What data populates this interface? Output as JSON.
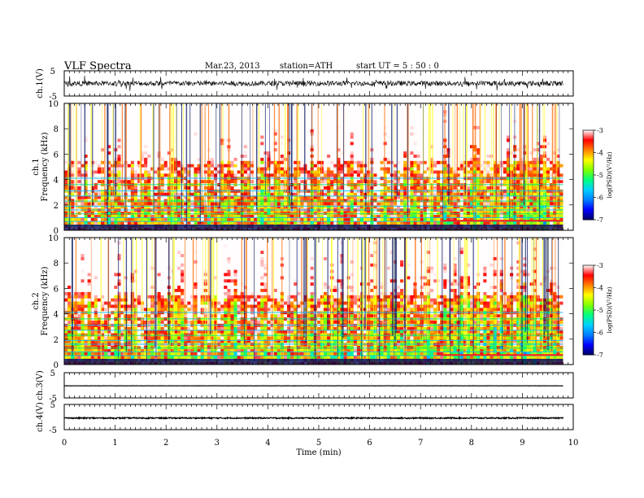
{
  "header": {
    "title": "VLF  Spectra",
    "date": "Mar.23, 2013",
    "station": "station=ATH",
    "start": "start  UT =   5  : 50 : 0"
  },
  "colors": {
    "spectrum_scale": [
      "#000066",
      "#0000ff",
      "#0080ff",
      "#00d0ff",
      "#00ff80",
      "#80ff00",
      "#ffff00",
      "#ff8000",
      "#ff0000",
      "#ffffff"
    ],
    "trace": "#000000"
  },
  "chart_data": [
    {
      "type": "line",
      "name": "ch1-waveform",
      "ylabel": "ch.1(V)",
      "ylim": [
        -5,
        5
      ],
      "yticks": [
        "5",
        "-5"
      ],
      "description_values": {
        "baseline": 0,
        "typical_amplitude": 1,
        "spike_extent": -2.2
      }
    },
    {
      "type": "heatmap",
      "name": "ch1-spectrogram",
      "channel_label": "ch.1",
      "ylabel": "Frequency  (kHz)",
      "ylim": [
        0,
        10
      ],
      "yticks": [
        "0",
        "2",
        "4",
        "6",
        "8",
        "10"
      ],
      "colorbar": {
        "label": "log(PSD)(V²/Hz)",
        "ticks": [
          "-3",
          "-4",
          "-5",
          "-6",
          "-7"
        ],
        "range": [
          -7,
          -3
        ]
      },
      "data_end_min": 9.8,
      "level_change_min": 7.4
    },
    {
      "type": "heatmap",
      "name": "ch2-spectrogram",
      "channel_label": "ch.2",
      "ylabel": "Frequency  (kHz)",
      "ylim": [
        0,
        10
      ],
      "yticks": [
        "0",
        "2",
        "4",
        "6",
        "8",
        "10"
      ],
      "colorbar": {
        "label": "log(PSD)(V²/Hz)",
        "ticks": [
          "-3",
          "-4",
          "-5",
          "-6",
          "-7"
        ],
        "range": [
          -7,
          -3
        ]
      },
      "data_end_min": 9.8,
      "level_change_min": 7.4
    },
    {
      "type": "line",
      "name": "ch3-waveform",
      "ylabel": "ch.3(V)",
      "ylim": [
        -5,
        5
      ],
      "yticks": [
        "5",
        "-5"
      ],
      "description_values": {
        "baseline": -0.2,
        "typical_amplitude": 0.05
      }
    },
    {
      "type": "line",
      "name": "ch4-waveform",
      "ylabel": "ch.4(V)",
      "ylim": [
        -5,
        5
      ],
      "yticks": [
        "5",
        "-5"
      ],
      "description_values": {
        "baseline": -0.4,
        "typical_amplitude": 0.25
      }
    }
  ],
  "xaxis": {
    "label": "Time  (min)",
    "ticks": [
      "0",
      "1",
      "2",
      "3",
      "4",
      "5",
      "6",
      "7",
      "8",
      "9",
      "10"
    ],
    "range": [
      0,
      10
    ]
  }
}
